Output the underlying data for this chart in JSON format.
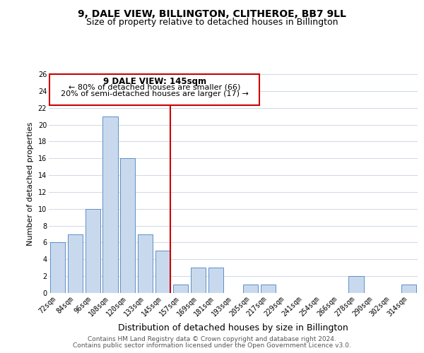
{
  "title": "9, DALE VIEW, BILLINGTON, CLITHEROE, BB7 9LL",
  "subtitle": "Size of property relative to detached houses in Billington",
  "xlabel": "Distribution of detached houses by size in Billington",
  "ylabel": "Number of detached properties",
  "bar_labels": [
    "72sqm",
    "84sqm",
    "96sqm",
    "108sqm",
    "120sqm",
    "133sqm",
    "145sqm",
    "157sqm",
    "169sqm",
    "181sqm",
    "193sqm",
    "205sqm",
    "217sqm",
    "229sqm",
    "241sqm",
    "254sqm",
    "266sqm",
    "278sqm",
    "290sqm",
    "302sqm",
    "314sqm"
  ],
  "bar_values": [
    6,
    7,
    10,
    21,
    16,
    7,
    5,
    1,
    3,
    3,
    0,
    1,
    1,
    0,
    0,
    0,
    0,
    2,
    0,
    0,
    1
  ],
  "bar_color": "#c9d9ed",
  "bar_edge_color": "#5b8fc9",
  "highlight_index": 6,
  "highlight_line_color": "#cc0000",
  "ylim": [
    0,
    26
  ],
  "yticks": [
    0,
    2,
    4,
    6,
    8,
    10,
    12,
    14,
    16,
    18,
    20,
    22,
    24,
    26
  ],
  "annotation_title": "9 DALE VIEW: 145sqm",
  "annotation_line1": "← 80% of detached houses are smaller (66)",
  "annotation_line2": "20% of semi-detached houses are larger (17) →",
  "annotation_box_color": "#ffffff",
  "annotation_box_edge": "#cc0000",
  "footer_line1": "Contains HM Land Registry data © Crown copyright and database right 2024.",
  "footer_line2": "Contains public sector information licensed under the Open Government Licence v3.0.",
  "background_color": "#ffffff",
  "grid_color": "#d0d8e4",
  "title_fontsize": 10,
  "subtitle_fontsize": 9,
  "xlabel_fontsize": 9,
  "ylabel_fontsize": 8,
  "tick_fontsize": 7,
  "footer_fontsize": 6.5,
  "annotation_title_fontsize": 8.5,
  "annotation_text_fontsize": 8
}
